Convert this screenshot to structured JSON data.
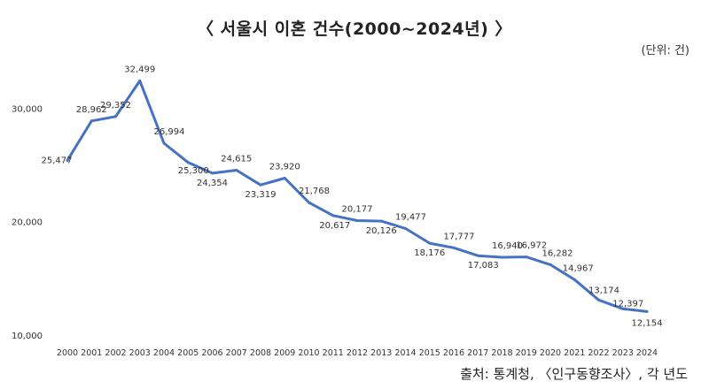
{
  "header": {
    "title": "〈 서울시 이혼 건수(2000~2024년) 〉",
    "unit": "(단위: 건)"
  },
  "footer": {
    "source": "출처: 통계청, 〈인구동향조사〉, 각 년도"
  },
  "colors": {
    "line": "#4472C4"
  },
  "chart_data": {
    "type": "line",
    "title": "〈 서울시 이혼 건수(2000~2024년) 〉",
    "xlabel": "",
    "ylabel": "",
    "ylim": [
      10000,
      33000
    ],
    "yticks": [
      10000,
      20000,
      30000
    ],
    "ytick_labels": [
      "10,000",
      "20,000",
      "30,000"
    ],
    "grid": false,
    "legend": "none",
    "categories": [
      "2000",
      "2001",
      "2002",
      "2003",
      "2004",
      "2005",
      "2006",
      "2007",
      "2008",
      "2009",
      "2010",
      "2011",
      "2012",
      "2013",
      "2014",
      "2015",
      "2016",
      "2017",
      "2018",
      "2019",
      "2020",
      "2021",
      "2022",
      "2023",
      "2024"
    ],
    "series": [
      {
        "values": [
          25477,
          28962,
          29352,
          32499,
          26994,
          25300,
          24354,
          24615,
          23319,
          23920,
          21768,
          20617,
          20177,
          20126,
          19477,
          18176,
          17777,
          17083,
          16940,
          16972,
          16282,
          14967,
          13174,
          12397,
          12154
        ],
        "labels": [
          "25,477",
          "28,962",
          "29,352",
          "32,499",
          "26,994",
          "25,300",
          "24,354",
          "24,615",
          "23,319",
          "23,920",
          "21,768",
          "20,617",
          "20,177",
          "20,126",
          "19,477",
          "18,176",
          "17,777",
          "17,083",
          "16,940",
          "16,972",
          "16,282",
          "14,967",
          "13,174",
          "12,397",
          "12,154"
        ]
      }
    ]
  }
}
